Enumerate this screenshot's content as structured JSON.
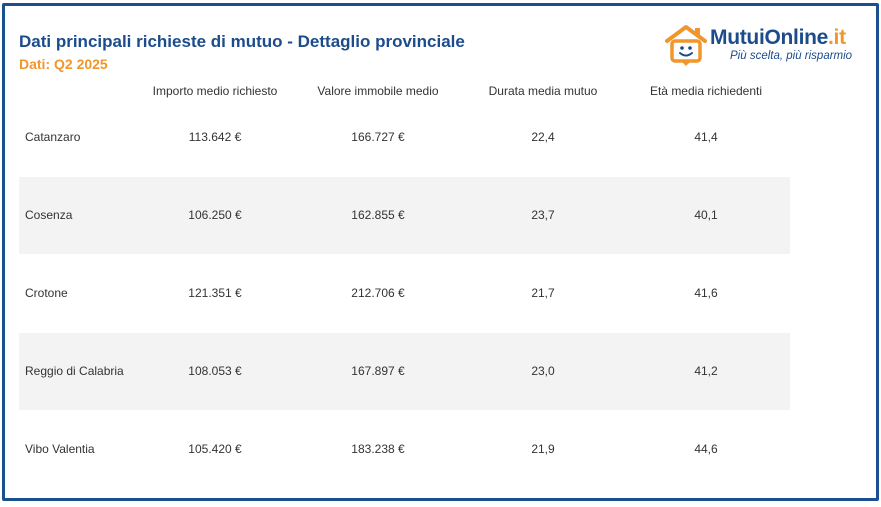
{
  "header": {
    "title": "Dati principali richieste di mutuo - Dettaglio provinciale",
    "subtitle": "Dati: Q2 2025"
  },
  "logo": {
    "brand_main": "MutuiOnline",
    "brand_suffix": ".it",
    "tagline": "Più scelta, più risparmio",
    "colors": {
      "blue": "#1c4c8c",
      "orange": "#f0962a"
    }
  },
  "chart_data": {
    "type": "table",
    "title": "Dati principali richieste di mutuo - Dettaglio provinciale",
    "subtitle": "Dati: Q2 2025",
    "columns": [
      "Importo medio richiesto",
      "Valore immobile medio",
      "Durata media mutuo",
      "Età media richiedenti"
    ],
    "rows": [
      {
        "label": "Catanzaro",
        "values": [
          "113.642 €",
          "166.727 €",
          "22,4",
          "41,4"
        ]
      },
      {
        "label": "Cosenza",
        "values": [
          "106.250 €",
          "162.855 €",
          "23,7",
          "40,1"
        ]
      },
      {
        "label": "Crotone",
        "values": [
          "121.351 €",
          "212.706 €",
          "21,7",
          "41,6"
        ]
      },
      {
        "label": "Reggio di Calabria",
        "values": [
          "108.053 €",
          "167.897 €",
          "23,0",
          "41,2"
        ]
      },
      {
        "label": "Vibo Valentia",
        "values": [
          "105.420 €",
          "183.238 €",
          "21,9",
          "44,6"
        ]
      }
    ]
  }
}
